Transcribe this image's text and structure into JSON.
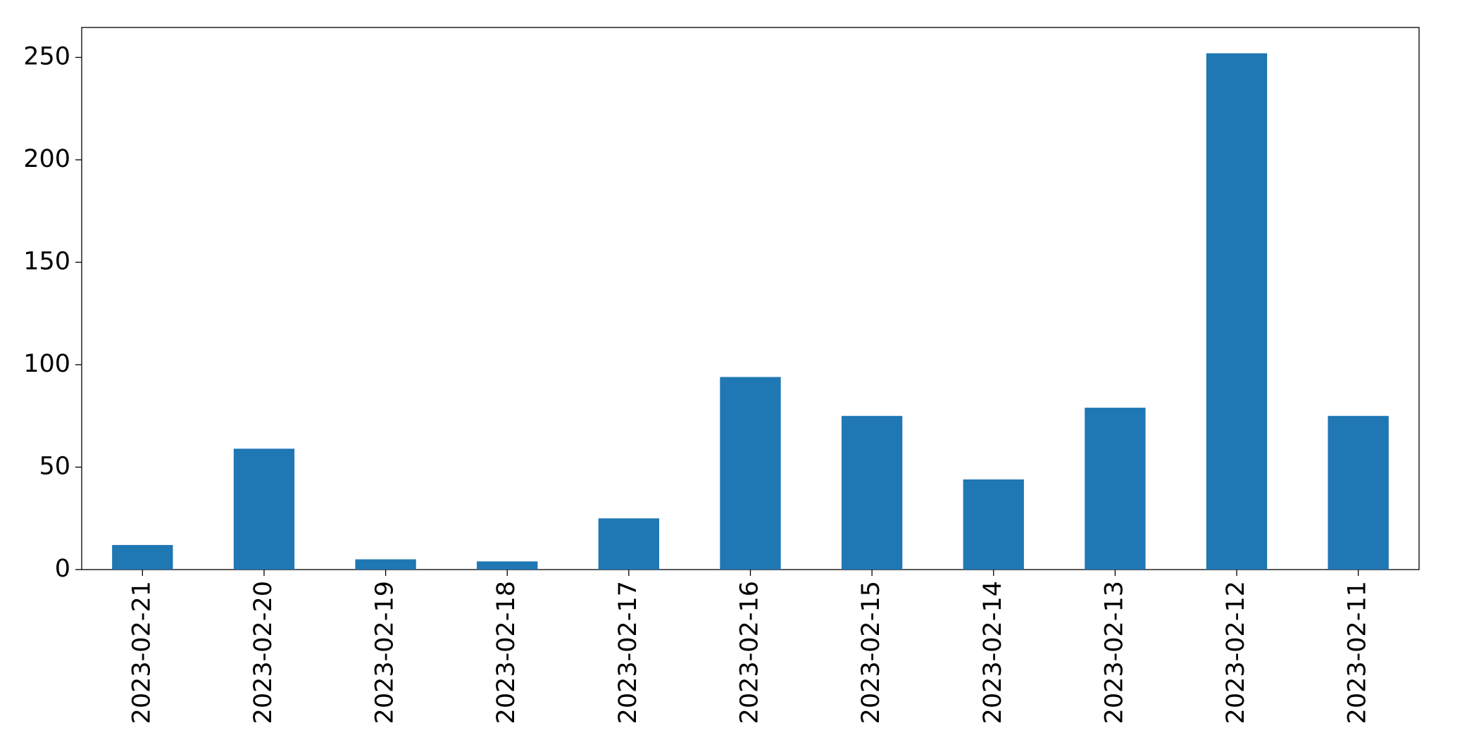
{
  "chart_data": {
    "type": "bar",
    "categories": [
      "2023-02-21",
      "2023-02-20",
      "2023-02-19",
      "2023-02-18",
      "2023-02-17",
      "2023-02-16",
      "2023-02-15",
      "2023-02-14",
      "2023-02-13",
      "2023-02-12",
      "2023-02-11"
    ],
    "values": [
      12,
      59,
      5,
      4,
      25,
      94,
      75,
      44,
      79,
      252,
      75
    ],
    "color": "#1f77b4",
    "ylim": [
      0,
      264.6
    ],
    "yticks": [
      0,
      50,
      100,
      150,
      200,
      250
    ],
    "grid": false
  }
}
